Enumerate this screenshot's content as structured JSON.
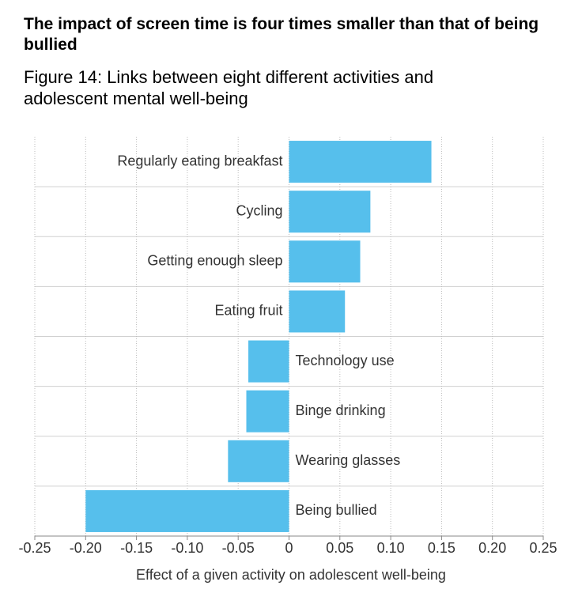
{
  "chart_data": {
    "type": "barh",
    "title": "The impact of screen time is four times smaller than that of being bullied",
    "subtitle": "Figure 14: Links between eight different activities and adolescent mental well-being",
    "x_label": "Effect of a given activity on adolescent well-being",
    "categories": [
      "Regularly eating breakfast",
      "Cycling",
      "Getting enough sleep",
      "Eating fruit",
      "Technology use",
      "Binge drinking",
      "Wearing glasses",
      "Being bullied"
    ],
    "values": [
      0.14,
      0.08,
      0.07,
      0.055,
      -0.04,
      -0.042,
      -0.06,
      -0.2
    ],
    "color": "#56bfec",
    "xlim": [
      -0.25,
      0.25
    ],
    "xticks": [
      -0.25,
      {
        "value": -0.2,
        "label": "-0.20"
      },
      -0.15,
      {
        "value": -0.1,
        "label": "-0.10"
      },
      -0.05,
      0,
      0.05,
      {
        "value": 0.1,
        "label": "0.10"
      },
      0.15,
      {
        "value": 0.2,
        "label": "0.20"
      },
      0.25
    ],
    "grid": true
  }
}
